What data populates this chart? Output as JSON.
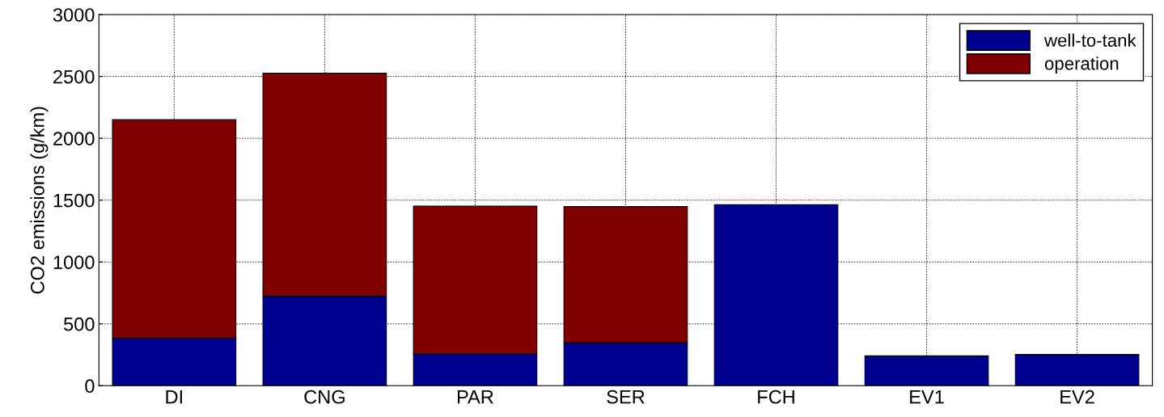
{
  "chart_data": {
    "type": "bar",
    "ylabel": "CO2 emissions (g/km)",
    "categories": [
      "DI",
      "CNG",
      "PAR",
      "SER",
      "FCH",
      "EV1",
      "EV2"
    ],
    "stacked": true,
    "series": [
      {
        "name": "well-to-tank",
        "color": "#000090",
        "values": [
          385,
          723,
          259,
          349,
          1463,
          241,
          253
        ]
      },
      {
        "name": "operation",
        "color": "#800000",
        "values": [
          1765,
          1804,
          1193,
          1099,
          null,
          null,
          null
        ]
      }
    ],
    "ylim": [
      0,
      3000
    ],
    "yticks": [
      0,
      500,
      1000,
      1500,
      2000,
      2500,
      3000
    ],
    "grid": true,
    "legend": "top right"
  }
}
